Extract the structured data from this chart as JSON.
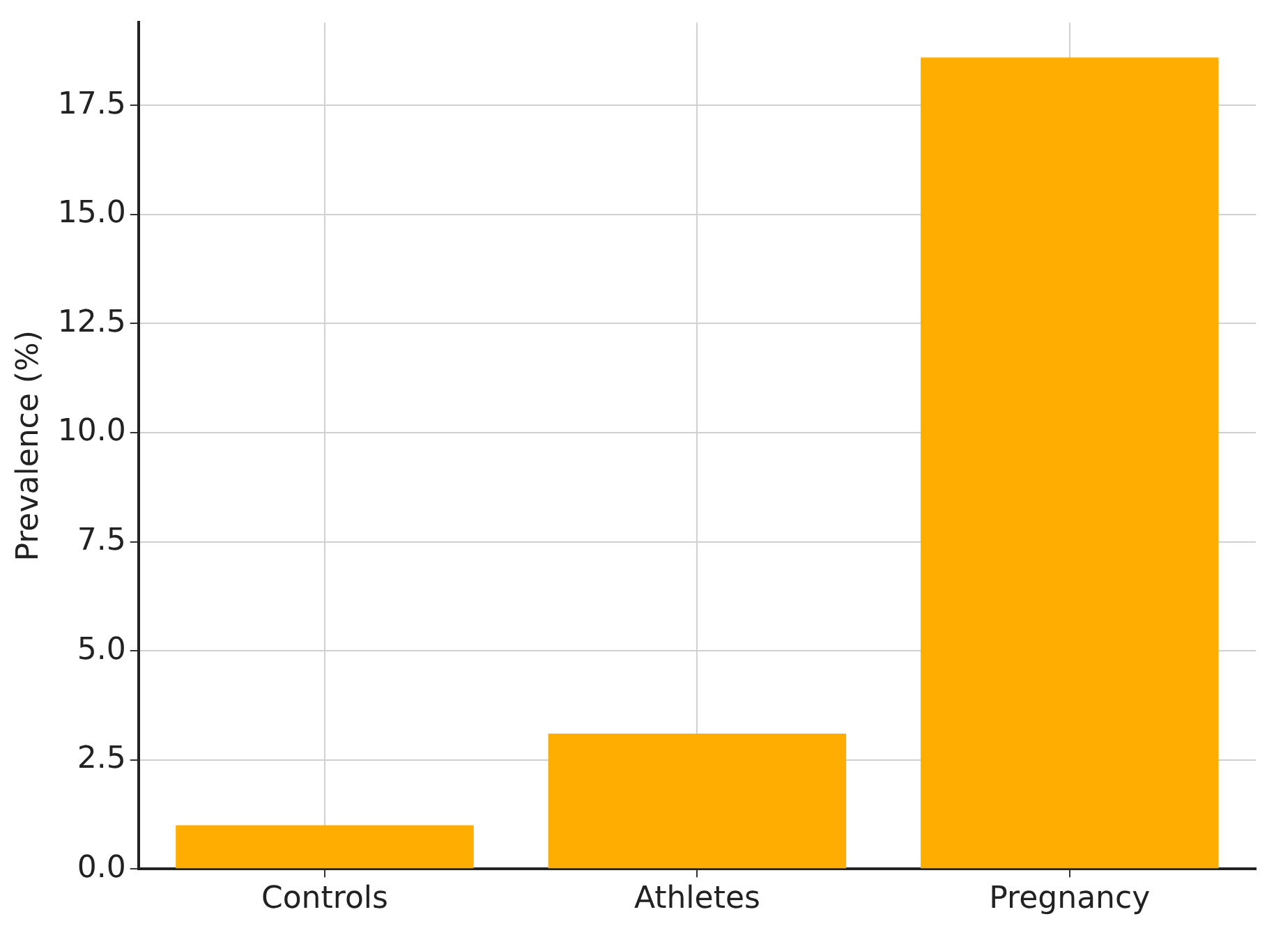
{
  "chart_data": {
    "type": "bar",
    "categories": [
      "Controls",
      "Athletes",
      "Pregnancy"
    ],
    "values": [
      1.0,
      3.1,
      18.6
    ],
    "color": "#ffae00",
    "ylabel": "Prevalence (%)",
    "ylim": [
      0,
      19.4
    ],
    "yticks": [
      {
        "value": 0,
        "label": "0.0"
      },
      {
        "value": 2.5,
        "label": "2.5"
      },
      {
        "value": 5,
        "label": "5.0"
      },
      {
        "value": 7.5,
        "label": "7.5"
      },
      {
        "value": 10,
        "label": "10.0"
      },
      {
        "value": 12.5,
        "label": "12.5"
      },
      {
        "value": 15,
        "label": "15.0"
      },
      {
        "value": 17.5,
        "label": "17.5"
      }
    ],
    "grid": true
  }
}
